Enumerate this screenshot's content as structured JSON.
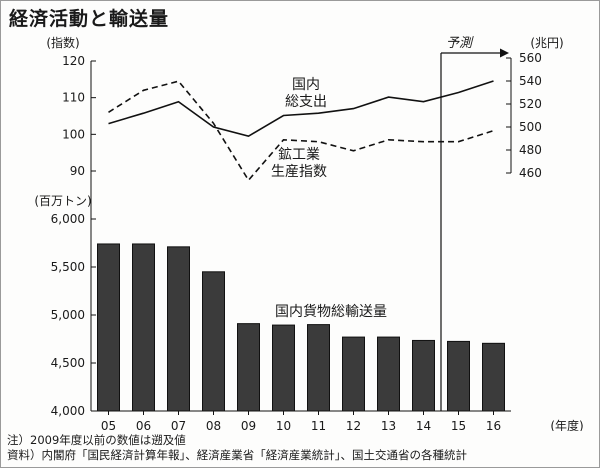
{
  "title": "経済活動と輸送量",
  "notes": {
    "note": "注）2009年度以前の数値は遡及値",
    "source": "資料）内閣府「国民経済計算年報」、経済産業省「経済産業統計」、国土交通省の各種統計"
  },
  "chart_data": [
    {
      "type": "line",
      "unit_left": "(指数)",
      "unit_right": "(兆円)",
      "x": [
        "05",
        "06",
        "07",
        "08",
        "09",
        "10",
        "11",
        "12",
        "13",
        "14",
        "15",
        "16"
      ],
      "ylim_left": [
        90,
        120
      ],
      "yticks_left": [
        "90",
        "100",
        "110",
        "120"
      ],
      "ylim_right": [
        460,
        560
      ],
      "yticks_right": [
        "460",
        "480",
        "500",
        "520",
        "540",
        "560"
      ],
      "forecast_label": "予測",
      "forecast_from": "15",
      "series": [
        {
          "name": "国内総支出",
          "axis": "right",
          "style": "solid",
          "values": [
            503,
            512,
            522,
            500,
            492,
            510,
            512,
            516,
            526,
            522,
            530,
            540
          ]
        },
        {
          "name": "鉱工業生産指数",
          "axis": "left",
          "style": "dashed",
          "values": [
            106,
            112,
            114.5,
            103,
            87.5,
            98.5,
            98,
            95.5,
            98.5,
            98,
            98,
            101
          ]
        }
      ],
      "annotations": [
        {
          "series": 0,
          "lines": [
            "国内",
            "総支出"
          ]
        },
        {
          "series": 1,
          "lines": [
            "鉱工業",
            "生産指数"
          ]
        }
      ]
    },
    {
      "type": "bar",
      "unit": "(百万トン)",
      "xlabel": "(年度)",
      "categories": [
        "05",
        "06",
        "07",
        "08",
        "09",
        "10",
        "11",
        "12",
        "13",
        "14",
        "15",
        "16"
      ],
      "ylim": [
        4000,
        6000
      ],
      "yticks": [
        "4,000",
        "4,500",
        "5,000",
        "5,500",
        "6,000"
      ],
      "series": [
        {
          "name": "国内貨物総輸送量",
          "values": [
            5740,
            5740,
            5710,
            5450,
            4910,
            4895,
            4900,
            4770,
            4770,
            4735,
            4725,
            4705
          ]
        }
      ],
      "color": "#3b3b3b"
    }
  ]
}
